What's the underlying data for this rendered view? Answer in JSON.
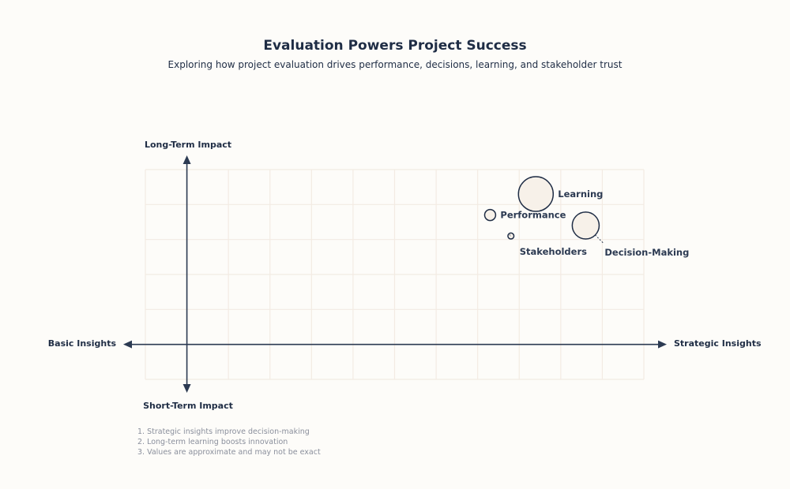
{
  "chart_data": {
    "type": "scatter",
    "title": "Evaluation Powers Project Success",
    "subtitle": "Exploring how project evaluation drives performance, decisions, learning, and stakeholder trust",
    "axes": {
      "x_negative_label": "Basic Insights",
      "x_positive_label": "Strategic Insights",
      "y_positive_label": "Long-Term Impact",
      "y_negative_label": "Short-Term Impact"
    },
    "xlim": [
      -1,
      11
    ],
    "ylim": [
      -1,
      5
    ],
    "grid": true,
    "points": [
      {
        "label": "Learning",
        "x": 8.4,
        "y": 4.3,
        "size": 100,
        "label_position": "right"
      },
      {
        "label": "Performance",
        "x": 7.3,
        "y": 3.7,
        "size": 10,
        "label_position": "right"
      },
      {
        "label": "Stakeholders",
        "x": 7.8,
        "y": 3.1,
        "size": 3,
        "label_position": "below"
      },
      {
        "label": "Decision-Making",
        "x": 9.6,
        "y": 3.4,
        "size": 60,
        "label_position": "bottom-right"
      }
    ],
    "notes": [
      "1. Strategic insights improve decision-making",
      "2. Long-term learning boosts innovation",
      "3. Values are approximate and may not be exact"
    ],
    "colors": {
      "axis": "#2c3a52",
      "grid": "#f3ebe3",
      "bubble_fill": "#f7f1e9",
      "bubble_stroke": "#1f2d45",
      "background": "#fdfcf9"
    }
  }
}
